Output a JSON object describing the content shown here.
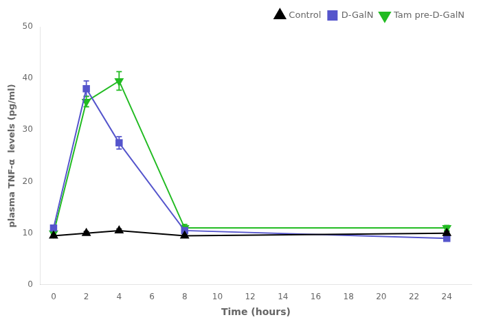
{
  "chart_data": {
    "type": "line",
    "x": [
      0,
      2,
      4,
      8,
      24
    ],
    "series": [
      {
        "name": "Control",
        "color": "#000000",
        "marker": "triangle_up",
        "values": [
          9.5,
          10.0,
          10.5,
          9.5,
          10.0
        ],
        "yerr": [
          0.3,
          0.3,
          0.3,
          0.3,
          0.3
        ]
      },
      {
        "name": "D-GalN",
        "color": "#5555cc",
        "marker": "square",
        "values": [
          11.0,
          38.0,
          27.5,
          10.5,
          9.0
        ],
        "yerr": [
          0.5,
          1.5,
          1.2,
          0.6,
          0.4
        ]
      },
      {
        "name": "Tam pre-D-GalN",
        "color": "#22bb22",
        "marker": "triangle_down",
        "values": [
          10.0,
          35.5,
          39.5,
          11.0,
          11.0
        ],
        "yerr": [
          0.4,
          1.0,
          1.8,
          0.7,
          0.5
        ]
      }
    ],
    "x_label": "Time (hours)",
    "y_label": "plasma TNF-α  levels (pg/ml)",
    "xlim": [
      -0.8,
      25.5
    ],
    "xticks": [
      0,
      2,
      4,
      6,
      8,
      10,
      12,
      14,
      16,
      18,
      20,
      22,
      24
    ],
    "ylim": [
      0,
      50
    ],
    "yticks": [
      0,
      10,
      20,
      30,
      40,
      50
    ],
    "grid": false,
    "legend": "upper right"
  }
}
